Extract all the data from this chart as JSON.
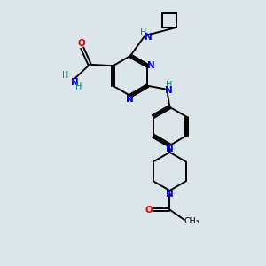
{
  "background_color": "#dce6ea",
  "bond_color": "#000000",
  "N_color": "#0000ee",
  "O_color": "#ee0000",
  "figsize": [
    3.0,
    3.0
  ],
  "dpi": 100,
  "xlim": [
    0,
    10
  ],
  "ylim": [
    0,
    10
  ]
}
